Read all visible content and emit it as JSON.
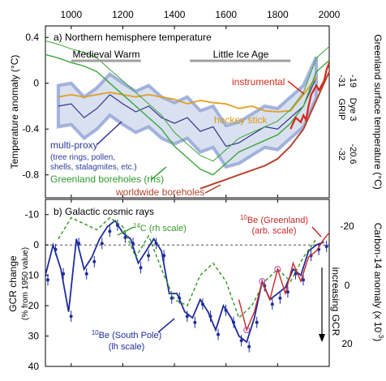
{
  "colors": {
    "multiproxy": "#33338f",
    "band": "#b9c6e4",
    "band_dark": "#8fa3d4",
    "hockey": "#e0a020",
    "instrumental": "#d42a1a",
    "greenland": "#3aa63a",
    "worldwide": "#b4452f",
    "be_south": "#1f2d9c",
    "c14": "#3a9a2a",
    "be_green": "#c8282a",
    "eras": "#a0a0a0"
  },
  "chart_data": [
    {
      "type": "line",
      "title": "a) Northern hemisphere temperature",
      "ylabel": "Temperature anomaly (°C)",
      "ylabel_right": "Greenland surface temperature (°C)",
      "xlim": [
        900,
        2000
      ],
      "ylim": [
        -1.0,
        0.5
      ],
      "x_ticks": [
        1000,
        1200,
        1400,
        1600,
        1800,
        2000
      ],
      "y_ticks": [
        "0.4",
        "0",
        "-0.4",
        "-0.8"
      ],
      "right_ticks_grip": [
        "-31",
        "-32"
      ],
      "right_ticks_dye3": [
        "-19",
        "-20.6"
      ],
      "right_tick_headers": [
        "GRIP",
        "Dye 3"
      ],
      "eras": [
        {
          "label": "Medieval Warm",
          "x": [
            1000,
            1270
          ]
        },
        {
          "label": "Little Ice Age",
          "x": [
            1460,
            1850
          ]
        }
      ],
      "series": [
        {
          "name": "multi-proxy",
          "note": "(tree rings, pollen, shells, stalagmites, etc.)",
          "x": [
            950,
            1000,
            1050,
            1100,
            1150,
            1200,
            1250,
            1300,
            1350,
            1400,
            1450,
            1500,
            1550,
            1600,
            1650,
            1700,
            1750,
            1800,
            1850,
            1900,
            1950
          ],
          "y": [
            -0.2,
            -0.18,
            -0.3,
            -0.22,
            -0.1,
            -0.18,
            -0.25,
            -0.2,
            -0.3,
            -0.35,
            -0.3,
            -0.42,
            -0.38,
            -0.55,
            -0.52,
            -0.45,
            -0.38,
            -0.4,
            -0.3,
            -0.2,
            0.05
          ]
        },
        {
          "name": "hockey stick",
          "x": [
            950,
            1000,
            1050,
            1100,
            1150,
            1200,
            1250,
            1300,
            1350,
            1400,
            1450,
            1500,
            1550,
            1600,
            1650,
            1700,
            1750,
            1800,
            1850,
            1900,
            1950
          ],
          "y": [
            -0.12,
            -0.1,
            -0.12,
            -0.1,
            -0.08,
            -0.1,
            -0.12,
            -0.1,
            -0.12,
            -0.14,
            -0.18,
            -0.15,
            -0.17,
            -0.18,
            -0.22,
            -0.2,
            -0.24,
            -0.25,
            -0.24,
            -0.1,
            0.05
          ]
        },
        {
          "name": "instrumental",
          "x": [
            1850,
            1870,
            1890,
            1900,
            1910,
            1920,
            1930,
            1940,
            1950,
            1960,
            1970,
            1980,
            1990,
            2000
          ],
          "y": [
            -0.4,
            -0.3,
            -0.34,
            -0.28,
            -0.32,
            -0.2,
            -0.1,
            -0.06,
            -0.02,
            -0.06,
            -0.02,
            0.02,
            0.12,
            0.18
          ]
        },
        {
          "name": "Greenland boreholes (rhs)",
          "x": [
            900,
            950,
            1000,
            1050,
            1100,
            1150,
            1200,
            1250,
            1300,
            1350,
            1400,
            1450,
            1500,
            1550,
            1600,
            1650,
            1700,
            1750,
            1800,
            1850,
            1900,
            1950,
            2000
          ],
          "y": [
            0.25,
            0.22,
            0.18,
            0.15,
            0.1,
            0.0,
            -0.1,
            -0.2,
            -0.3,
            -0.4,
            -0.55,
            -0.65,
            -0.75,
            -0.8,
            -0.7,
            -0.6,
            -0.55,
            -0.5,
            -0.45,
            -0.35,
            -0.2,
            0.1,
            0.2
          ]
        },
        {
          "name": "worldwide boreholes",
          "x": [
            1500,
            1550,
            1600,
            1650,
            1700,
            1750,
            1800,
            1850,
            1900,
            1950,
            2000
          ],
          "y": [
            -0.92,
            -0.88,
            -0.84,
            -0.8,
            -0.76,
            -0.72,
            -0.66,
            -0.55,
            -0.4,
            -0.15,
            0.1
          ]
        }
      ],
      "annotations": [
        "instrumental",
        "hockey stick",
        "multi-proxy",
        "(tree rings, pollen,",
        "shells, stalagmites, etc.)",
        "Greenland boreholes (rhs)",
        "worldwide boreholes"
      ]
    },
    {
      "type": "line",
      "title": "b) Galactic cosmic rays",
      "ylabel": "GCR change",
      "ylabel_unit": "(% from 1950 value)",
      "ylabel_right": "Carbon-14 anomaly (x 10",
      "ylabel_right_exp": "-3",
      "xlim": [
        900,
        2000
      ],
      "ylim": [
        40,
        -15
      ],
      "y_ticks": [
        "-10",
        "0",
        "10",
        "20",
        "30",
        "40"
      ],
      "right_ticks": [
        "-20",
        "0",
        "20"
      ],
      "zero_line": 0,
      "series": [
        {
          "name": "10Be (South Pole) (lh scale)",
          "x": [
            900,
            930,
            960,
            990,
            1020,
            1050,
            1080,
            1110,
            1140,
            1170,
            1200,
            1230,
            1260,
            1290,
            1320,
            1350,
            1380,
            1410,
            1440,
            1470,
            1500,
            1530,
            1560,
            1590,
            1620,
            1650,
            1680,
            1710,
            1740,
            1770,
            1800,
            1830,
            1860,
            1890,
            1920,
            1950,
            1980
          ],
          "y": [
            10,
            0,
            8,
            22,
            -2,
            8,
            4,
            -2,
            -6,
            -8,
            -4,
            -2,
            6,
            2,
            -2,
            2,
            16,
            16,
            22,
            24,
            18,
            22,
            28,
            20,
            24,
            30,
            32,
            24,
            12,
            18,
            16,
            14,
            8,
            10,
            2,
            0,
            -1
          ]
        },
        {
          "name": "14C (rh scale)",
          "x": [
            950,
            1000,
            1050,
            1100,
            1150,
            1200,
            1250,
            1300,
            1350,
            1400,
            1450,
            1500,
            1550,
            1600,
            1650,
            1700,
            1750,
            1800,
            1850,
            1900,
            1950
          ],
          "y": [
            -2,
            -9,
            -7,
            -5,
            -9,
            -6,
            4,
            -3,
            8,
            18,
            20,
            10,
            6,
            12,
            24,
            20,
            12,
            8,
            12,
            4,
            -2
          ]
        },
        {
          "name": "10Be (Greenland) (arb. scale)",
          "x": [
            1650,
            1680,
            1710,
            1740,
            1770,
            1800,
            1830,
            1860,
            1890,
            1920,
            1950,
            1980,
            2000
          ],
          "y": [
            18,
            28,
            22,
            12,
            18,
            8,
            16,
            6,
            12,
            4,
            2,
            -2,
            -4
          ]
        }
      ],
      "annotations": [
        "14C (rh scale)",
        "10Be (Greenland)",
        "(arb. scale)",
        "10Be (South Pole)",
        "(lh scale)",
        "increasing GCR"
      ]
    }
  ]
}
